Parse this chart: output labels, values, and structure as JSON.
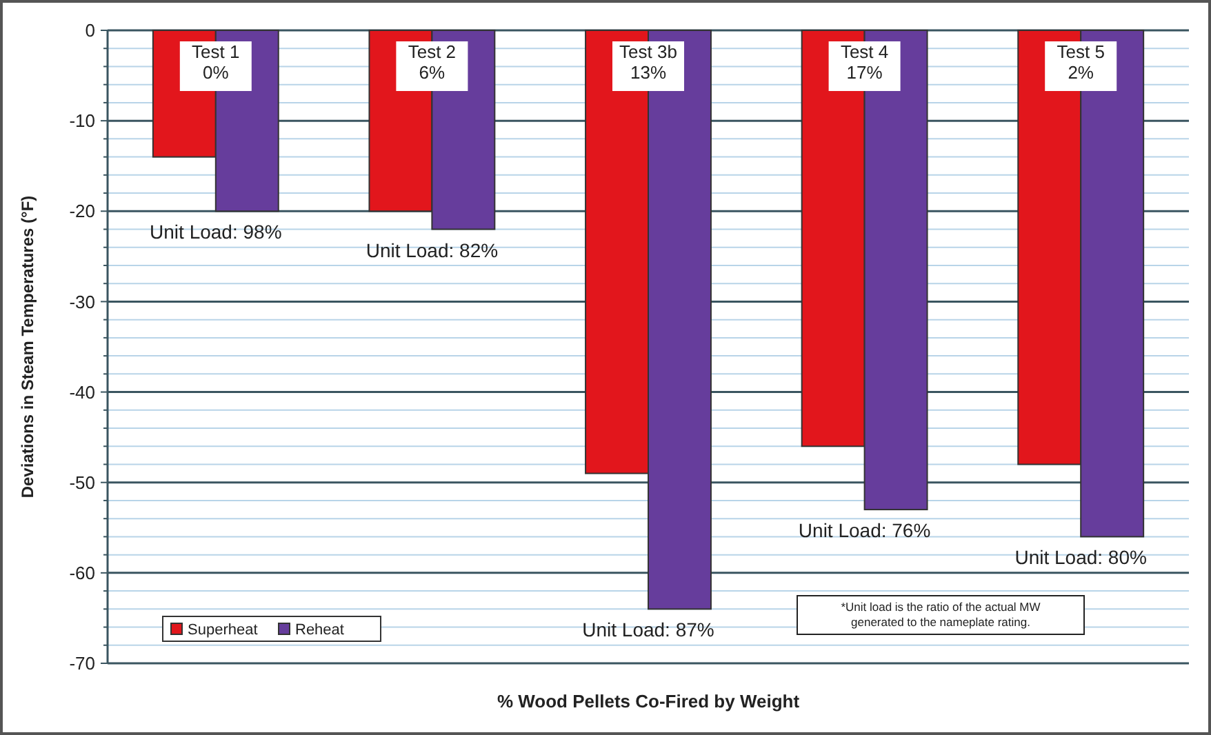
{
  "chart_data": {
    "type": "bar",
    "xlabel": "% Wood Pellets Co-Fired by Weight",
    "ylabel": "Deviations in Steam Temperatures (°F)",
    "categories": [
      null,
      null,
      null,
      null,
      null
    ],
    "series": [
      {
        "name": "Superheat",
        "color": "#e2161c",
        "values": [
          -14,
          -20,
          -49,
          -46,
          -48
        ]
      },
      {
        "name": "Reheat",
        "color": "#663d9c",
        "values": [
          -20,
          -22,
          -64,
          -53,
          -56
        ]
      }
    ],
    "ylim": [
      -70,
      0
    ],
    "yticks": [
      0,
      {
        "value": -2,
        "label": null
      },
      {
        "value": -4,
        "label": null
      },
      {
        "value": -6,
        "label": null
      },
      {
        "value": -8,
        "label": null
      },
      -10,
      {
        "value": -12,
        "label": null
      },
      {
        "value": -14,
        "label": null
      },
      {
        "value": -16,
        "label": null
      },
      {
        "value": -18,
        "label": null
      },
      -20,
      {
        "value": -22,
        "label": null
      },
      {
        "value": -24,
        "label": null
      },
      {
        "value": -26,
        "label": null
      },
      {
        "value": -28,
        "label": null
      },
      -30,
      {
        "value": -32,
        "label": null
      },
      {
        "value": -34,
        "label": null
      },
      {
        "value": -36,
        "label": null
      },
      {
        "value": -38,
        "label": null
      },
      -40,
      {
        "value": -42,
        "label": null
      },
      {
        "value": -44,
        "label": null
      },
      {
        "value": -46,
        "label": null
      },
      {
        "value": -48,
        "label": null
      },
      -50,
      {
        "value": -52,
        "label": null
      },
      {
        "value": -54,
        "label": null
      },
      {
        "value": -56,
        "label": null
      },
      {
        "value": -58,
        "label": null
      },
      -60,
      {
        "value": -62,
        "label": null
      },
      {
        "value": -64,
        "label": null
      },
      {
        "value": -66,
        "label": null
      },
      {
        "value": -68,
        "label": null
      },
      -70
    ],
    "grid": "y",
    "legend": "bottom left",
    "annotations": [
      "Test 1\n0%",
      "Test 2\n6%",
      "Test 3b\n13%",
      "Test 4\n17%",
      "Test 5\n2%",
      "Unit Load: 98%",
      "Unit Load: 82%",
      "Unit Load: 87%",
      "Unit Load: 76%",
      "Unit Load: 80%",
      "*Unit load is the ratio of the actual MW\ngenerated to the nameplate rating."
    ]
  }
}
